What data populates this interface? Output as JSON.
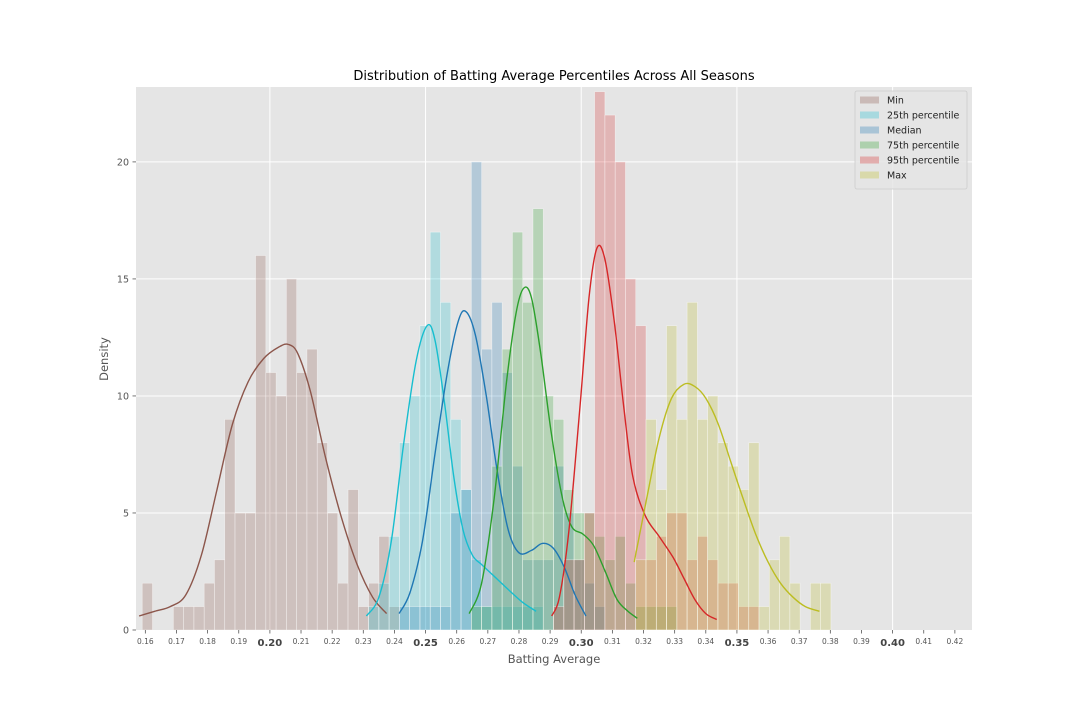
{
  "chart_data": {
    "type": "histogram",
    "title": "Distribution of Batting Average Percentiles Across All Seasons",
    "xlabel": "Batting Average",
    "ylabel": "Density",
    "xlim": [
      0.157,
      0.4255
    ],
    "ylim": [
      0,
      23.2
    ],
    "bin_width": 0.0033,
    "x_ticks": [
      {
        "value": 0.16,
        "label": "0.16",
        "bold": false
      },
      {
        "value": 0.17,
        "label": "0.17",
        "bold": false
      },
      {
        "value": 0.18,
        "label": "0.18",
        "bold": false
      },
      {
        "value": 0.19,
        "label": "0.19",
        "bold": false
      },
      {
        "value": 0.2,
        "label": "0.20",
        "bold": true
      },
      {
        "value": 0.21,
        "label": "0.21",
        "bold": false
      },
      {
        "value": 0.22,
        "label": "0.22",
        "bold": false
      },
      {
        "value": 0.23,
        "label": "0.23",
        "bold": false
      },
      {
        "value": 0.24,
        "label": "0.24",
        "bold": false
      },
      {
        "value": 0.25,
        "label": "0.25",
        "bold": true
      },
      {
        "value": 0.26,
        "label": "0.26",
        "bold": false
      },
      {
        "value": 0.27,
        "label": "0.27",
        "bold": false
      },
      {
        "value": 0.28,
        "label": "0.28",
        "bold": false
      },
      {
        "value": 0.29,
        "label": "0.29",
        "bold": false
      },
      {
        "value": 0.3,
        "label": "0.30",
        "bold": true
      },
      {
        "value": 0.31,
        "label": "0.31",
        "bold": false
      },
      {
        "value": 0.32,
        "label": "0.32",
        "bold": false
      },
      {
        "value": 0.33,
        "label": "0.33",
        "bold": false
      },
      {
        "value": 0.34,
        "label": "0.34",
        "bold": false
      },
      {
        "value": 0.35,
        "label": "0.35",
        "bold": true
      },
      {
        "value": 0.36,
        "label": "0.36",
        "bold": false
      },
      {
        "value": 0.37,
        "label": "0.37",
        "bold": false
      },
      {
        "value": 0.38,
        "label": "0.38",
        "bold": false
      },
      {
        "value": 0.39,
        "label": "0.39",
        "bold": false
      },
      {
        "value": 0.4,
        "label": "0.40",
        "bold": true
      },
      {
        "value": 0.41,
        "label": "0.41",
        "bold": false
      },
      {
        "value": 0.42,
        "label": "0.42",
        "bold": false
      }
    ],
    "y_ticks": [
      {
        "value": 0,
        "label": "0"
      },
      {
        "value": 5,
        "label": "5"
      },
      {
        "value": 10,
        "label": "10"
      },
      {
        "value": 15,
        "label": "15"
      },
      {
        "value": 20,
        "label": "20"
      }
    ],
    "major_x_gridlines": [
      0.2,
      0.25,
      0.3,
      0.35,
      0.4
    ],
    "grid": true,
    "legend_position": "upper right",
    "series": [
      {
        "name": "Min",
        "color": "#8c564b",
        "bins": [
          [
            0.159,
            2
          ],
          [
            0.169,
            1
          ],
          [
            0.1723,
            1
          ],
          [
            0.1756,
            1
          ],
          [
            0.1789,
            2
          ],
          [
            0.1822,
            3
          ],
          [
            0.1855,
            9
          ],
          [
            0.1888,
            5
          ],
          [
            0.1921,
            5
          ],
          [
            0.1954,
            16
          ],
          [
            0.1987,
            11
          ],
          [
            0.202,
            10
          ],
          [
            0.2053,
            15
          ],
          [
            0.2086,
            11
          ],
          [
            0.2119,
            12
          ],
          [
            0.2152,
            8
          ],
          [
            0.2185,
            5
          ],
          [
            0.2218,
            2
          ],
          [
            0.2251,
            6
          ],
          [
            0.2284,
            1
          ],
          [
            0.2317,
            2
          ],
          [
            0.235,
            4
          ],
          [
            0.2383,
            1
          ]
        ],
        "kde": [
          [
            0.158,
            0.6
          ],
          [
            0.163,
            0.8
          ],
          [
            0.168,
            1.0
          ],
          [
            0.173,
            1.5
          ],
          [
            0.178,
            3.2
          ],
          [
            0.183,
            6.0
          ],
          [
            0.188,
            8.8
          ],
          [
            0.193,
            10.6
          ],
          [
            0.198,
            11.6
          ],
          [
            0.203,
            12.1
          ],
          [
            0.206,
            12.2
          ],
          [
            0.209,
            11.8
          ],
          [
            0.213,
            10.2
          ],
          [
            0.218,
            7.3
          ],
          [
            0.223,
            4.8
          ],
          [
            0.228,
            2.8
          ],
          [
            0.233,
            1.4
          ],
          [
            0.2375,
            0.7
          ]
        ]
      },
      {
        "name": "25th percentile",
        "color": "#17becf",
        "bins": [
          [
            0.2317,
            1
          ],
          [
            0.235,
            2
          ],
          [
            0.2383,
            4
          ],
          [
            0.2416,
            8
          ],
          [
            0.2449,
            10
          ],
          [
            0.2482,
            13
          ],
          [
            0.2515,
            17
          ],
          [
            0.2548,
            14
          ],
          [
            0.2581,
            9
          ],
          [
            0.2614,
            6
          ],
          [
            0.2647,
            3
          ],
          [
            0.268,
            1
          ],
          [
            0.2713,
            1
          ],
          [
            0.2746,
            1
          ],
          [
            0.2779,
            1
          ],
          [
            0.2812,
            1
          ],
          [
            0.2845,
            1
          ]
        ],
        "kde": [
          [
            0.231,
            0.6
          ],
          [
            0.235,
            1.4
          ],
          [
            0.239,
            3.8
          ],
          [
            0.243,
            8.0
          ],
          [
            0.247,
            11.5
          ],
          [
            0.2505,
            13.0
          ],
          [
            0.253,
            12.4
          ],
          [
            0.256,
            9.8
          ],
          [
            0.259,
            6.6
          ],
          [
            0.262,
            4.3
          ],
          [
            0.265,
            3.2
          ],
          [
            0.268,
            2.8
          ],
          [
            0.272,
            2.3
          ],
          [
            0.276,
            1.8
          ],
          [
            0.281,
            1.2
          ],
          [
            0.2855,
            0.8
          ]
        ]
      },
      {
        "name": "Median",
        "color": "#1f77b4",
        "bins": [
          [
            0.2416,
            1
          ],
          [
            0.2449,
            1
          ],
          [
            0.2482,
            1
          ],
          [
            0.2515,
            1
          ],
          [
            0.2548,
            1
          ],
          [
            0.2581,
            5
          ],
          [
            0.2614,
            6
          ],
          [
            0.2647,
            20
          ],
          [
            0.268,
            12
          ],
          [
            0.2713,
            14
          ],
          [
            0.2746,
            11
          ],
          [
            0.2779,
            7
          ],
          [
            0.2812,
            3
          ],
          [
            0.2845,
            3
          ],
          [
            0.2878,
            3
          ],
          [
            0.2911,
            7
          ],
          [
            0.2944,
            5
          ],
          [
            0.2977,
            3
          ],
          [
            0.301,
            2
          ],
          [
            0.3043,
            1
          ]
        ],
        "kde": [
          [
            0.2415,
            0.7
          ],
          [
            0.245,
            1.6
          ],
          [
            0.249,
            3.8
          ],
          [
            0.253,
            7.5
          ],
          [
            0.257,
            11.0
          ],
          [
            0.2605,
            13.2
          ],
          [
            0.263,
            13.6
          ],
          [
            0.266,
            12.6
          ],
          [
            0.2695,
            10.0
          ],
          [
            0.273,
            6.8
          ],
          [
            0.2765,
            4.3
          ],
          [
            0.28,
            3.3
          ],
          [
            0.284,
            3.4
          ],
          [
            0.2875,
            3.7
          ],
          [
            0.291,
            3.5
          ],
          [
            0.2945,
            2.7
          ],
          [
            0.298,
            1.5
          ],
          [
            0.3015,
            0.6
          ]
        ]
      },
      {
        "name": "75th percentile",
        "color": "#2ca02c",
        "bins": [
          [
            0.2647,
            1
          ],
          [
            0.268,
            1
          ],
          [
            0.2713,
            7
          ],
          [
            0.2746,
            12
          ],
          [
            0.2779,
            17
          ],
          [
            0.2812,
            14
          ],
          [
            0.2845,
            18
          ],
          [
            0.2878,
            10
          ],
          [
            0.2911,
            9
          ],
          [
            0.2944,
            6
          ],
          [
            0.2977,
            5
          ],
          [
            0.301,
            5
          ],
          [
            0.3043,
            4
          ],
          [
            0.3076,
            3
          ],
          [
            0.3109,
            4
          ],
          [
            0.3142,
            2
          ],
          [
            0.3175,
            1
          ],
          [
            0.3208,
            1
          ],
          [
            0.3241,
            1
          ],
          [
            0.3274,
            1
          ]
        ],
        "kde": [
          [
            0.264,
            0.7
          ],
          [
            0.268,
            2.0
          ],
          [
            0.272,
            5.6
          ],
          [
            0.276,
            10.6
          ],
          [
            0.279,
            13.5
          ],
          [
            0.2815,
            14.6
          ],
          [
            0.284,
            14.2
          ],
          [
            0.287,
            11.8
          ],
          [
            0.2905,
            8.3
          ],
          [
            0.294,
            5.6
          ],
          [
            0.297,
            4.4
          ],
          [
            0.3005,
            4.1
          ],
          [
            0.304,
            3.6
          ],
          [
            0.308,
            2.4
          ],
          [
            0.3115,
            1.3
          ],
          [
            0.315,
            0.8
          ],
          [
            0.318,
            0.5
          ]
        ]
      },
      {
        "name": "95th percentile",
        "color": "#d62728",
        "bins": [
          [
            0.2911,
            1
          ],
          [
            0.2944,
            3
          ],
          [
            0.2977,
            3
          ],
          [
            0.301,
            5
          ],
          [
            0.3043,
            23
          ],
          [
            0.3076,
            22
          ],
          [
            0.3109,
            20
          ],
          [
            0.3142,
            15
          ],
          [
            0.3175,
            13
          ],
          [
            0.3208,
            3
          ],
          [
            0.3241,
            4
          ],
          [
            0.3274,
            5
          ],
          [
            0.3307,
            5
          ],
          [
            0.334,
            3
          ],
          [
            0.3373,
            4
          ],
          [
            0.3406,
            3
          ],
          [
            0.3439,
            2
          ],
          [
            0.3472,
            2
          ],
          [
            0.3505,
            1
          ],
          [
            0.3538,
            1
          ]
        ],
        "kde": [
          [
            0.2905,
            0.6
          ],
          [
            0.293,
            1.4
          ],
          [
            0.296,
            4.2
          ],
          [
            0.2995,
            9.4
          ],
          [
            0.3025,
            14.2
          ],
          [
            0.305,
            16.3
          ],
          [
            0.3075,
            15.9
          ],
          [
            0.3105,
            13.3
          ],
          [
            0.3135,
            9.7
          ],
          [
            0.3165,
            6.6
          ],
          [
            0.3205,
            4.9
          ],
          [
            0.325,
            4.0
          ],
          [
            0.3295,
            3.1
          ],
          [
            0.333,
            2.2
          ],
          [
            0.3365,
            1.3
          ],
          [
            0.34,
            0.7
          ],
          [
            0.3435,
            0.45
          ]
        ]
      },
      {
        "name": "Max",
        "color": "#bcbd22",
        "bins": [
          [
            0.3175,
            3
          ],
          [
            0.3208,
            9
          ],
          [
            0.3241,
            6
          ],
          [
            0.3274,
            13
          ],
          [
            0.3307,
            9
          ],
          [
            0.334,
            14
          ],
          [
            0.3373,
            9
          ],
          [
            0.3406,
            10
          ],
          [
            0.3439,
            8
          ],
          [
            0.3472,
            7
          ],
          [
            0.3505,
            6
          ],
          [
            0.3538,
            8
          ],
          [
            0.3571,
            1
          ],
          [
            0.3604,
            3
          ],
          [
            0.3637,
            4
          ],
          [
            0.367,
            2
          ],
          [
            0.3736,
            2
          ],
          [
            0.3769,
            2
          ]
        ],
        "kde": [
          [
            0.317,
            2.9
          ],
          [
            0.321,
            5.6
          ],
          [
            0.325,
            8.2
          ],
          [
            0.329,
            9.9
          ],
          [
            0.333,
            10.5
          ],
          [
            0.3365,
            10.4
          ],
          [
            0.34,
            9.9
          ],
          [
            0.344,
            8.8
          ],
          [
            0.348,
            7.2
          ],
          [
            0.352,
            5.6
          ],
          [
            0.356,
            4.1
          ],
          [
            0.36,
            2.9
          ],
          [
            0.364,
            2.0
          ],
          [
            0.368,
            1.4
          ],
          [
            0.372,
            1.0
          ],
          [
            0.3765,
            0.8
          ]
        ]
      }
    ]
  }
}
